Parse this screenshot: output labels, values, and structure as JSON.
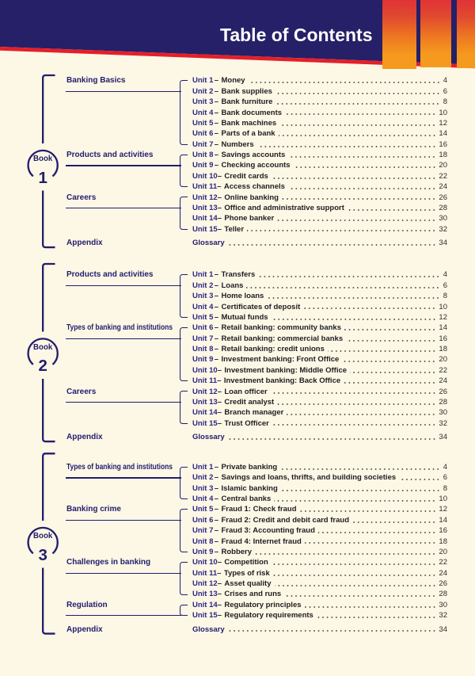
{
  "header": {
    "title": "Table of Contents"
  },
  "colors": {
    "cream": "#fdf7e5",
    "navy_band": "#252067",
    "navy": "#211d6e",
    "unit_blue": "#2c2883",
    "ink": "#1e1d23",
    "dot": "#3c3c3c",
    "page_number": "#2c2c2c",
    "red": "#e41f2a",
    "bar_top": "#e03237",
    "bar_bottom": "#f59a1e"
  },
  "books": [
    {
      "badge_word": "Book",
      "badge_number": "1",
      "sections": [
        {
          "label": "Banking Basics",
          "units": [
            {
              "label": "Unit 1",
              "title": "Money",
              "page": "4"
            },
            {
              "label": "Unit 2",
              "title": "Bank supplies",
              "page": "6"
            },
            {
              "label": "Unit 3",
              "title": "Bank furniture",
              "page": "8"
            },
            {
              "label": "Unit 4",
              "title": "Bank documents",
              "page": "10"
            },
            {
              "label": "Unit 5",
              "title": "Bank machines",
              "page": "12"
            },
            {
              "label": "Unit 6",
              "title": "Parts of a bank",
              "page": "14"
            },
            {
              "label": "Unit 7",
              "title": "Numbers",
              "page": "16"
            }
          ]
        },
        {
          "label": "Products and activities",
          "units": [
            {
              "label": "Unit 8",
              "title": "Savings accounts",
              "page": "18"
            },
            {
              "label": "Unit 9",
              "title": "Checking accounts",
              "page": "20"
            },
            {
              "label": "Unit 10",
              "title": "Credit cards",
              "page": "22"
            },
            {
              "label": "Unit 11",
              "title": "Access channels",
              "page": "24"
            }
          ]
        },
        {
          "label": "Careers",
          "units": [
            {
              "label": "Unit 12",
              "title": "Online banking",
              "page": "26"
            },
            {
              "label": "Unit 13",
              "title": "Office and administrative support",
              "page": "28"
            },
            {
              "label": "Unit 14",
              "title": "Phone banker",
              "page": "30"
            },
            {
              "label": "Unit 15",
              "title": "Teller",
              "page": "32"
            }
          ]
        }
      ],
      "appendix": {
        "label": "Appendix",
        "title": "Glossary",
        "page": "34"
      }
    },
    {
      "badge_word": "Book",
      "badge_number": "2",
      "sections": [
        {
          "label": "Products and activities",
          "units": [
            {
              "label": "Unit 1",
              "title": "Transfers",
              "page": "4"
            },
            {
              "label": "Unit 2",
              "title": "Loans",
              "page": "6"
            },
            {
              "label": "Unit 3",
              "title": "Home loans",
              "page": "8"
            },
            {
              "label": "Unit 4",
              "title": "Certificates of deposit",
              "page": "10"
            },
            {
              "label": "Unit 5",
              "title": "Mutual funds",
              "page": "12"
            }
          ]
        },
        {
          "label": "Types of banking and institutions",
          "units": [
            {
              "label": "Unit 6",
              "title": "Retail banking: community banks",
              "page": "14"
            },
            {
              "label": "Unit 7",
              "title": "Retail banking: commercial banks",
              "page": "16"
            },
            {
              "label": "Unit 8",
              "title": "Retail banking: credit unions",
              "page": "18"
            },
            {
              "label": "Unit 9",
              "title": "Investment banking: Front Office",
              "page": "20"
            },
            {
              "label": "Unit 10",
              "title": "Investment banking: Middle Office",
              "page": "22"
            },
            {
              "label": "Unit 11",
              "title": "Investment banking: Back Office",
              "page": "24"
            }
          ]
        },
        {
          "label": "Careers",
          "units": [
            {
              "label": "Unit 12",
              "title": "Loan officer",
              "page": "26"
            },
            {
              "label": "Unit 13",
              "title": "Credit analyst",
              "page": "28"
            },
            {
              "label": "Unit 14",
              "title": "Branch manager",
              "page": "30"
            },
            {
              "label": "Unit 15",
              "title": "Trust Officer",
              "page": "32"
            }
          ]
        }
      ],
      "appendix": {
        "label": "Appendix",
        "title": "Glossary",
        "page": "34"
      }
    },
    {
      "badge_word": "Book",
      "badge_number": "3",
      "sections": [
        {
          "label": "Types of banking and institutions",
          "units": [
            {
              "label": "Unit 1",
              "title": "Private banking",
              "page": "4"
            },
            {
              "label": "Unit 2",
              "title": "Savings and loans, thrifts, and building societies",
              "page": "6"
            },
            {
              "label": "Unit 3",
              "title": "Islamic banking",
              "page": "8"
            },
            {
              "label": "Unit 4",
              "title": "Central banks",
              "page": "10"
            }
          ]
        },
        {
          "label": "Banking crime",
          "units": [
            {
              "label": "Unit 5",
              "title": "Fraud 1: Check fraud",
              "page": "12"
            },
            {
              "label": "Unit 6",
              "title": "Fraud 2: Credit and debit card fraud",
              "page": "14"
            },
            {
              "label": "Unit 7",
              "title": "Fraud 3: Accounting fraud",
              "page": "16"
            },
            {
              "label": "Unit 8",
              "title": "Fraud 4: Internet fraud",
              "page": "18"
            },
            {
              "label": "Unit 9",
              "title": "Robbery",
              "page": "20"
            }
          ]
        },
        {
          "label": "Challenges in banking",
          "units": [
            {
              "label": "Unit 10",
              "title": "Competition",
              "page": "22"
            },
            {
              "label": "Unit 11",
              "title": "Types of risk",
              "page": "24"
            },
            {
              "label": "Unit 12",
              "title": "Asset quality",
              "page": "26"
            },
            {
              "label": "Unit 13",
              "title": "Crises and runs",
              "page": "28"
            }
          ]
        },
        {
          "label": "Regulation",
          "units": [
            {
              "label": "Unit 14",
              "title": "Regulatory principles",
              "page": "30"
            },
            {
              "label": "Unit 15",
              "title": "Regulatory requirements",
              "page": "32"
            }
          ]
        }
      ],
      "appendix": {
        "label": "Appendix",
        "title": "Glossary",
        "page": "34"
      }
    }
  ]
}
